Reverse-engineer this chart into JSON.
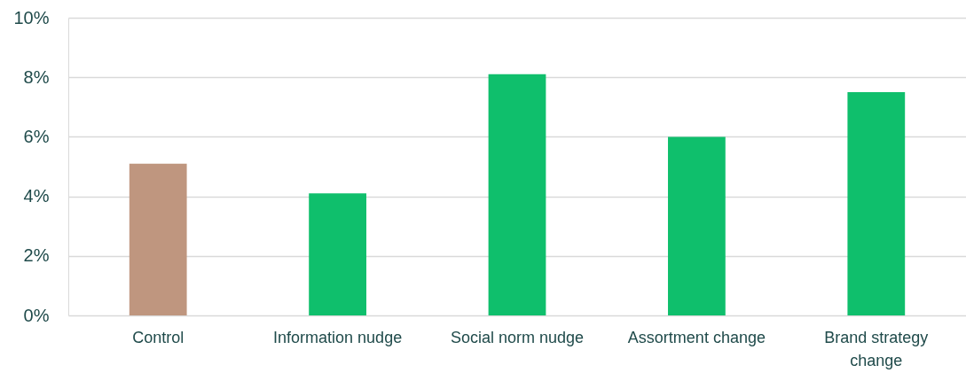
{
  "chart_data": {
    "type": "bar",
    "categories": [
      "Control",
      "Information nudge",
      "Social norm nudge",
      "Assortment change",
      "Brand strategy change"
    ],
    "values": [
      5.1,
      4.1,
      8.1,
      6.0,
      7.5
    ],
    "colors": [
      "#bf967f",
      "#0fbf6c",
      "#0fbf6c",
      "#0fbf6c",
      "#0fbf6c"
    ],
    "ylim": [
      0,
      10
    ],
    "yticks": [
      {
        "value": 0,
        "label": "0%"
      },
      {
        "value": 2,
        "label": "2%"
      },
      {
        "value": 4,
        "label": "4%"
      },
      {
        "value": 6,
        "label": "6%"
      },
      {
        "value": 8,
        "label": "8%"
      },
      {
        "value": 10,
        "label": "10%"
      }
    ],
    "grid": "y"
  }
}
